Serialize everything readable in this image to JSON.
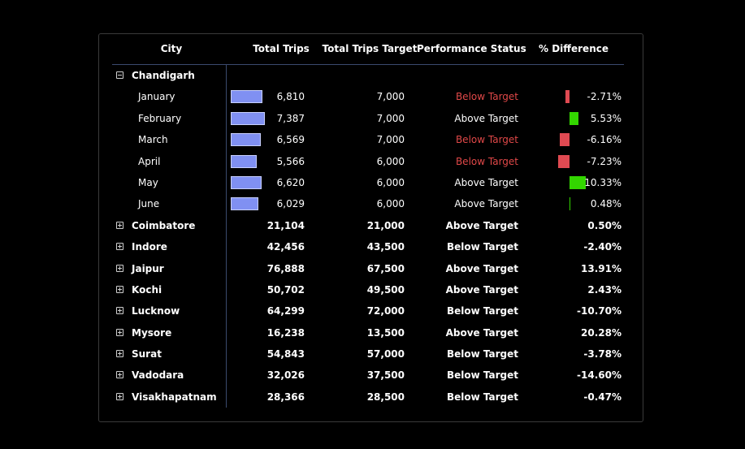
{
  "headers": {
    "city": "City",
    "total_trips": "Total Trips",
    "total_trips_target": "Total Trips Target",
    "performance_status": "Performance Status",
    "pct_difference": "% Difference"
  },
  "colors": {
    "trip_bar": "#8090f2",
    "positive_bar": "#33d600",
    "negative_bar": "#e04a52",
    "below_text": "#e04848"
  },
  "max_trips": 7387,
  "max_abs_diff": 10.33,
  "expanded_city": {
    "name": "Chandigarh",
    "toggle_icon": "collapse-minus-icon",
    "months": [
      {
        "month": "January",
        "trips": 6810,
        "trips_label": "6,810",
        "target": "7,000",
        "status": "Below Target",
        "below": true,
        "diff": -2.71,
        "diff_label": "-2.71%"
      },
      {
        "month": "February",
        "trips": 7387,
        "trips_label": "7,387",
        "target": "7,000",
        "status": "Above Target",
        "below": false,
        "diff": 5.53,
        "diff_label": "5.53%"
      },
      {
        "month": "March",
        "trips": 6569,
        "trips_label": "6,569",
        "target": "7,000",
        "status": "Below Target",
        "below": true,
        "diff": -6.16,
        "diff_label": "-6.16%"
      },
      {
        "month": "April",
        "trips": 5566,
        "trips_label": "5,566",
        "target": "6,000",
        "status": "Below Target",
        "below": true,
        "diff": -7.23,
        "diff_label": "-7.23%"
      },
      {
        "month": "May",
        "trips": 6620,
        "trips_label": "6,620",
        "target": "6,000",
        "status": "Above Target",
        "below": false,
        "diff": 10.33,
        "diff_label": "10.33%"
      },
      {
        "month": "June",
        "trips": 6029,
        "trips_label": "6,029",
        "target": "6,000",
        "status": "Above Target",
        "below": false,
        "diff": 0.48,
        "diff_label": "0.48%"
      }
    ]
  },
  "cities": [
    {
      "name": "Coimbatore",
      "trips": "21,104",
      "target": "21,000",
      "status": "Above Target",
      "diff": "0.50%"
    },
    {
      "name": "Indore",
      "trips": "42,456",
      "target": "43,500",
      "status": "Below Target",
      "diff": "-2.40%"
    },
    {
      "name": "Jaipur",
      "trips": "76,888",
      "target": "67,500",
      "status": "Above Target",
      "diff": "13.91%"
    },
    {
      "name": "Kochi",
      "trips": "50,702",
      "target": "49,500",
      "status": "Above Target",
      "diff": "2.43%"
    },
    {
      "name": "Lucknow",
      "trips": "64,299",
      "target": "72,000",
      "status": "Below Target",
      "diff": "-10.70%"
    },
    {
      "name": "Mysore",
      "trips": "16,238",
      "target": "13,500",
      "status": "Above Target",
      "diff": "20.28%"
    },
    {
      "name": "Surat",
      "trips": "54,843",
      "target": "57,000",
      "status": "Below Target",
      "diff": "-3.78%"
    },
    {
      "name": "Vadodara",
      "trips": "32,026",
      "target": "37,500",
      "status": "Below Target",
      "diff": "-14.60%"
    },
    {
      "name": "Visakhapatnam",
      "trips": "28,366",
      "target": "28,500",
      "status": "Below Target",
      "diff": "-0.47%"
    }
  ]
}
